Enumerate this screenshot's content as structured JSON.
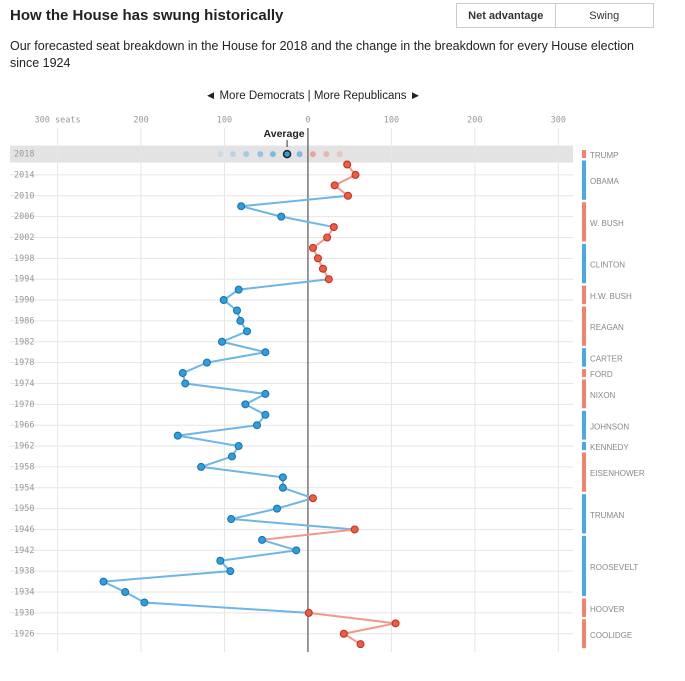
{
  "chart_data": {
    "type": "line",
    "title": "How the House has swung historically",
    "buttons": [
      "Net advantage",
      "Swing"
    ],
    "subtitle": "Our forecasted seat breakdown in the House for 2018 and the change in the breakdown for every House election since 1924",
    "direction_label": "◄ More Democrats | More Republicans ►",
    "average_label": "Average",
    "dem_color": "#2d9fe0",
    "rep_color": "#ef5b45",
    "dem_line": "#6db6e6",
    "rep_line": "#f2998a",
    "xlim": [
      -357,
      320
    ],
    "xticks": [
      {
        "value": -300,
        "label": "300 seats"
      },
      {
        "value": -200,
        "label": "200"
      },
      {
        "value": -100,
        "label": "100"
      },
      0,
      100,
      200,
      300
    ],
    "ylim": [
      2023,
      1922.5
    ],
    "yticks": [
      2018,
      2014,
      2010,
      2006,
      2002,
      1998,
      1994,
      1990,
      1986,
      1982,
      1978,
      1974,
      1970,
      1966,
      1962,
      1958,
      1954,
      1950,
      1946,
      1942,
      1938,
      1934,
      1930,
      1926
    ],
    "grid": true,
    "forecast": [
      -105,
      -90,
      -74,
      -57,
      -42,
      -25,
      -10,
      6,
      22,
      38
    ],
    "average": -25,
    "years": [
      2016,
      2014,
      2012,
      2010,
      2008,
      2006,
      2004,
      2002,
      2000,
      1998,
      1996,
      1994,
      1992,
      1990,
      1988,
      1986,
      1984,
      1982,
      1980,
      1978,
      1976,
      1974,
      1972,
      1970,
      1968,
      1966,
      1964,
      1962,
      1960,
      1958,
      1956,
      1954,
      1952,
      1950,
      1948,
      1946,
      1944,
      1942,
      1940,
      1938,
      1936,
      1934,
      1932,
      1930,
      1928,
      1926,
      1924
    ],
    "values": [
      47,
      57,
      32,
      48,
      -80,
      -32,
      31,
      23,
      6,
      12,
      18,
      25,
      -83,
      -101,
      -85,
      -81,
      -73,
      -103,
      -51,
      -121,
      -150,
      -147,
      -51,
      -75,
      -51,
      -61,
      -156,
      -83,
      -91,
      -128,
      -30,
      -30,
      6,
      -37,
      -92,
      56,
      -55,
      -14,
      -105,
      -93,
      -245,
      -219,
      -196,
      1,
      105,
      43,
      63
    ],
    "presidents": [
      {
        "name": "TRUMP",
        "color": "#f2836f",
        "start": 2018,
        "end": 2018
      },
      {
        "name": "OBAMA",
        "color": "#49a9e2",
        "start": 2010,
        "end": 2016
      },
      {
        "name": "W. BUSH",
        "color": "#f2836f",
        "start": 2002,
        "end": 2008
      },
      {
        "name": "CLINTON",
        "color": "#49a9e2",
        "start": 1994,
        "end": 2000
      },
      {
        "name": "H.W. BUSH",
        "color": "#f2836f",
        "start": 1990,
        "end": 1992
      },
      {
        "name": "REAGAN",
        "color": "#f2836f",
        "start": 1982,
        "end": 1988
      },
      {
        "name": "CARTER",
        "color": "#49a9e2",
        "start": 1978,
        "end": 1980
      },
      {
        "name": "FORD",
        "color": "#f2836f",
        "start": 1976,
        "end": 1976
      },
      {
        "name": "NIXON",
        "color": "#f2836f",
        "start": 1970,
        "end": 1974
      },
      {
        "name": "JOHNSON",
        "color": "#49a9e2",
        "start": 1964,
        "end": 1968
      },
      {
        "name": "KENNEDY",
        "color": "#49a9e2",
        "start": 1962,
        "end": 1962
      },
      {
        "name": "EISENHOWER",
        "color": "#f2836f",
        "start": 1954,
        "end": 1960
      },
      {
        "name": "TRUMAN",
        "color": "#49a9e2",
        "start": 1946,
        "end": 1952
      },
      {
        "name": "ROOSEVELT",
        "color": "#49a9e2",
        "start": 1934,
        "end": 1944
      },
      {
        "name": "HOOVER",
        "color": "#f2836f",
        "start": 1930,
        "end": 1932
      },
      {
        "name": "COOLIDGE",
        "color": "#f2836f",
        "start": 1924,
        "end": 1928
      }
    ]
  }
}
